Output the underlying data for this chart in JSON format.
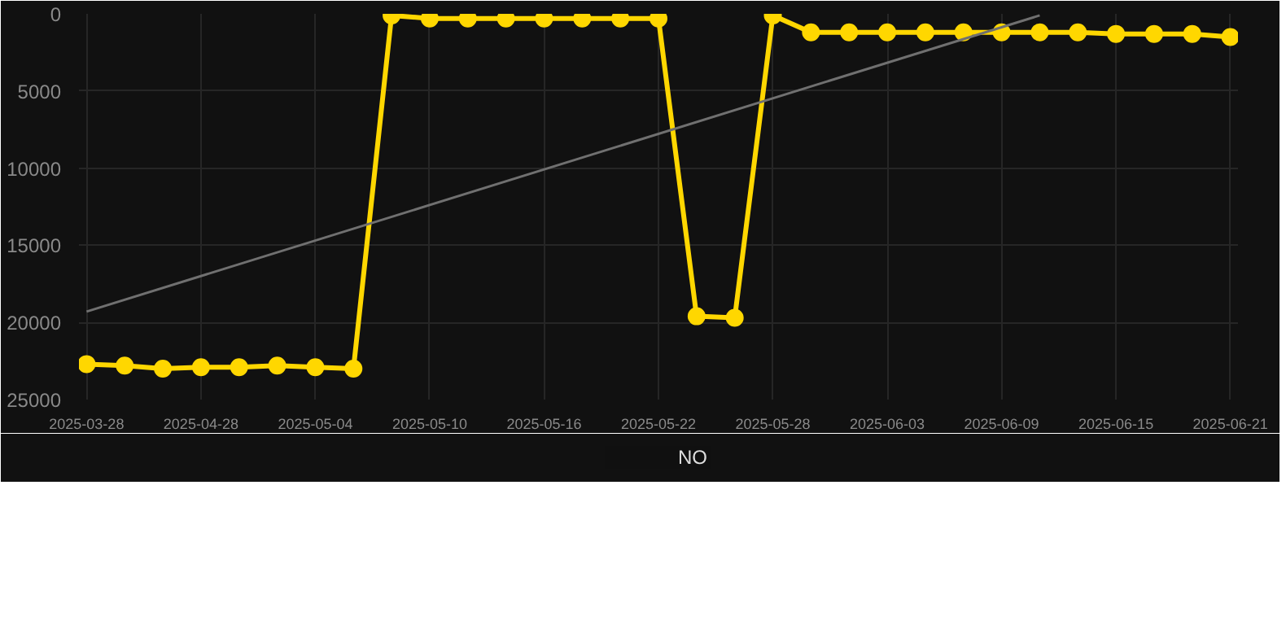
{
  "chart_data": {
    "type": "line",
    "categories": [
      "2025-03-28",
      null,
      null,
      "2025-04-28",
      null,
      null,
      "2025-05-04",
      null,
      null,
      "2025-05-10",
      null,
      null,
      "2025-05-16",
      null,
      null,
      "2025-05-22",
      null,
      null,
      "2025-05-28",
      null,
      null,
      "2025-06-03",
      null,
      null,
      "2025-06-09",
      null,
      null,
      "2025-06-15",
      null,
      null,
      "2025-06-21"
    ],
    "series": [
      {
        "name": "NO",
        "color": "#ffd700",
        "marker": "circle",
        "values": [
          22700,
          22800,
          23000,
          22900,
          22900,
          22800,
          22900,
          23000,
          100,
          300,
          300,
          300,
          300,
          300,
          300,
          300,
          19600,
          19700,
          100,
          1200,
          1200,
          1200,
          1200,
          1200,
          1200,
          1200,
          1200,
          1300,
          1300,
          1300,
          1500
        ]
      },
      {
        "type": "line",
        "color": "#707070",
        "marker": "none",
        "values": [
          19300,
          null,
          null,
          null,
          null,
          null,
          null,
          null,
          null,
          null,
          null,
          null,
          null,
          null,
          null,
          null,
          null,
          null,
          null,
          null,
          null,
          null,
          null,
          null,
          null,
          100,
          null,
          null,
          null,
          null,
          null
        ]
      }
    ],
    "ylim": [
      25000,
      0
    ],
    "yticks": [
      0,
      5000,
      10000,
      15000,
      20000,
      25000
    ],
    "grid": true,
    "legend": "bottom",
    "line_style": "solid"
  }
}
